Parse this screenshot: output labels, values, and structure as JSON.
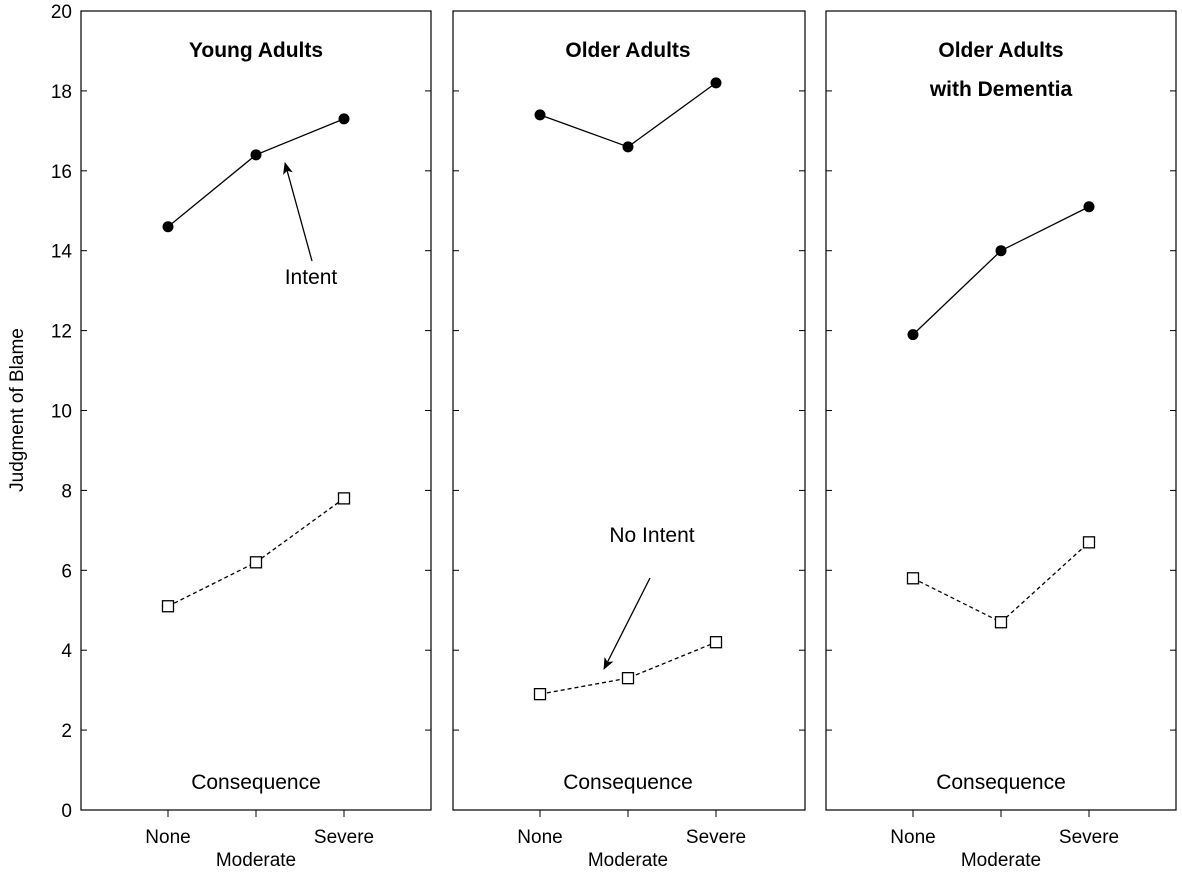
{
  "chart_data": {
    "type": "line",
    "ylabel": "Judgment of Blame",
    "ylim": [
      0,
      20
    ],
    "yticks": [
      "0",
      "2",
      "4",
      "6",
      "8",
      "10",
      "12",
      "14",
      "16",
      "18",
      "20"
    ],
    "x_ticks_top_row": [
      "None",
      "Severe"
    ],
    "x_tick_bottom_row": "Moderate",
    "categories": [
      "None",
      "Moderate",
      "Severe"
    ],
    "panel_xlabel": "Consequence",
    "grid": false,
    "panels": [
      {
        "title_lines": [
          "Young Adults"
        ],
        "series": [
          {
            "values": [
              14.6,
              16.4,
              17.3
            ],
            "marker": "filled-circle",
            "line": "solid"
          },
          {
            "values": [
              5.1,
              6.2,
              7.8
            ],
            "marker": "open-square",
            "line": "dotted"
          }
        ]
      },
      {
        "title_lines": [
          "Older Adults"
        ],
        "series": [
          {
            "values": [
              17.4,
              16.6,
              18.2
            ],
            "marker": "filled-circle",
            "line": "solid"
          },
          {
            "values": [
              2.9,
              3.3,
              4.2
            ],
            "marker": "open-square",
            "line": "dotted"
          }
        ]
      },
      {
        "title_lines": [
          "Older Adults",
          "with Dementia"
        ],
        "series": [
          {
            "values": [
              11.9,
              14.0,
              15.1
            ],
            "marker": "filled-circle",
            "line": "solid"
          },
          {
            "values": [
              5.8,
              4.7,
              6.7
            ],
            "marker": "open-square",
            "line": "dotted"
          }
        ]
      }
    ],
    "annotations": [
      {
        "text": "Intent",
        "panel": 0,
        "points_to": "Intent series between Moderate and Severe"
      },
      {
        "text": "No Intent",
        "panel": 1,
        "points_to": "No Intent series between None and Moderate"
      }
    ]
  }
}
